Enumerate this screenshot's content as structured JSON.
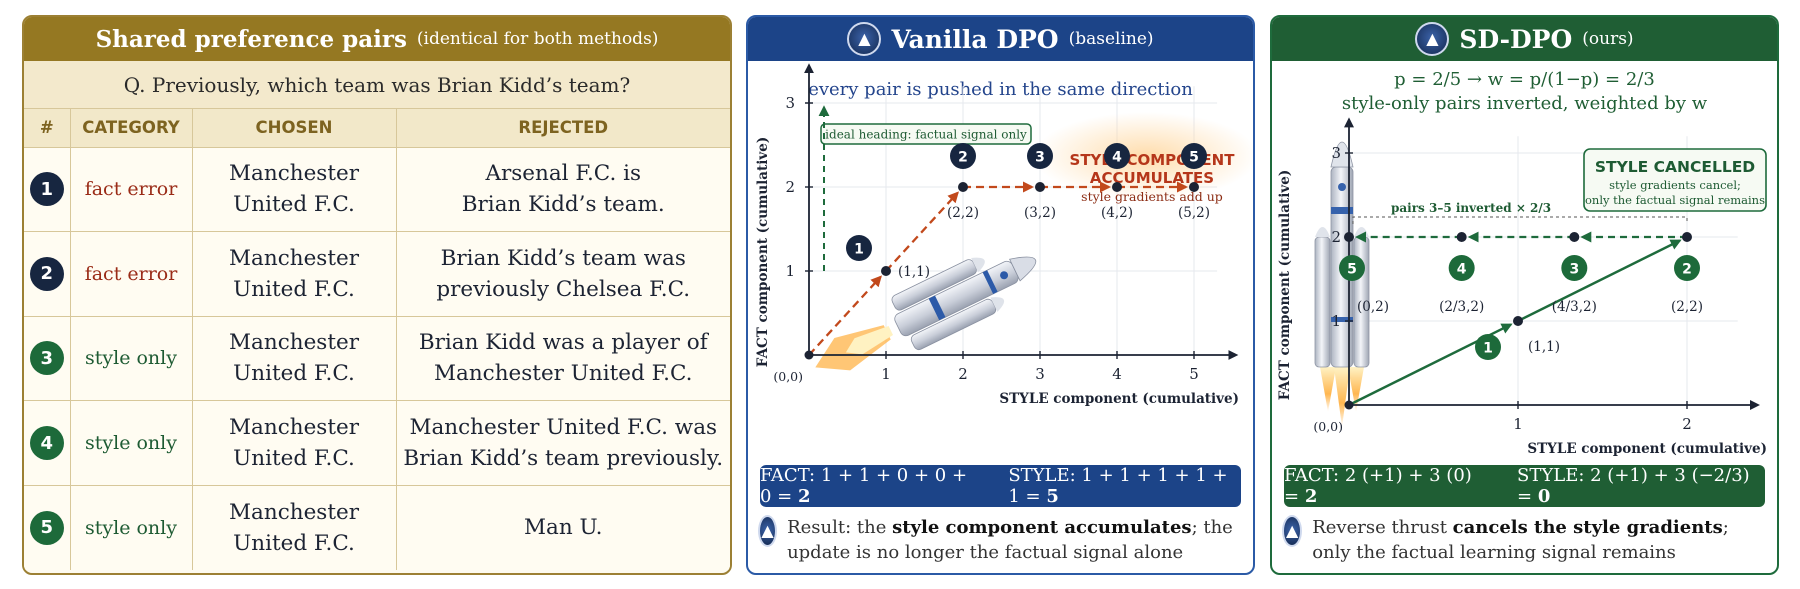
{
  "left_panel": {
    "title": "Shared preference pairs",
    "subtitle": "(identical for both methods)",
    "question": "Q. Previously, which team was Brian Kidd’s team?",
    "columns": [
      "#",
      "CATEGORY",
      "CHOSEN",
      "REJECTED"
    ],
    "rows": [
      {
        "num": "1",
        "category": "fact error",
        "kind": "err",
        "chosen_1": "Manchester",
        "chosen_2": "United F.C.",
        "rejected_1": "Arsenal F.C. is",
        "rejected_2": "Brian Kidd’s team."
      },
      {
        "num": "2",
        "category": "fact error",
        "kind": "err",
        "chosen_1": "Manchester",
        "chosen_2": "United F.C.",
        "rejected_1": "Brian Kidd’s team was",
        "rejected_2": "previously Chelsea F.C."
      },
      {
        "num": "3",
        "category": "style only",
        "kind": "sty",
        "chosen_1": "Manchester",
        "chosen_2": "United F.C.",
        "rejected_1": "Brian Kidd was a player of",
        "rejected_2": "Manchester United F.C."
      },
      {
        "num": "4",
        "category": "style only",
        "kind": "sty",
        "chosen_1": "Manchester",
        "chosen_2": "United F.C.",
        "rejected_1": "Manchester United F.C. was",
        "rejected_2": "Brian Kidd’s team previously."
      },
      {
        "num": "5",
        "category": "style only",
        "kind": "sty",
        "chosen_1": "Manchester",
        "chosen_2": "United F.C.",
        "rejected_1": "Man U.",
        "rejected_2": ""
      }
    ]
  },
  "vanilla": {
    "title": "Vanilla DPO",
    "tag": "(baseline)",
    "subtitle": "every pair is pushed in the same direction",
    "ideal_label": "ideal heading: factual signal only",
    "accum_title_1": "STYLE COMPONENT",
    "accum_title_2": "ACCUMULATES",
    "accum_sub": "style gradients add up",
    "y_axis_label": "FACT component (cumulative)",
    "x_axis_label": "STYLE component (cumulative)",
    "origin_label": "(0,0)",
    "x_ticks": [
      "1",
      "2",
      "3",
      "4",
      "5"
    ],
    "y_ticks": [
      "1",
      "2",
      "3"
    ],
    "points": [
      {
        "n": "1",
        "x": 1,
        "y": 1,
        "label": "(1,1)"
      },
      {
        "n": "2",
        "x": 2,
        "y": 2,
        "label": "(2,2)"
      },
      {
        "n": "3",
        "x": 3,
        "y": 2,
        "label": "(3,2)"
      },
      {
        "n": "4",
        "x": 4,
        "y": 2,
        "label": "(4,2)"
      },
      {
        "n": "5",
        "x": 5,
        "y": 2,
        "label": "(5,2)"
      }
    ],
    "sum_fact_text": "FACT: 1 + 1 + 0 + 0 + 0 = ",
    "sum_fact_total": "2",
    "sum_style_text": "STYLE: 1 + 1 + 1 + 1 + 1 = ",
    "sum_style_total": "5",
    "result_pre": "Result: the ",
    "result_bold": "style component accumulates",
    "result_post": "; the update is no longer the factual signal alone"
  },
  "sddpo": {
    "title": "SD-DPO",
    "tag": "(ours)",
    "formula": "p = 2/5 → w = p/(1−p) = 2/3",
    "subtitle": "style-only pairs inverted, weighted by w",
    "cancel_title": "STYLE CANCELLED",
    "cancel_sub_1": "style gradients cancel;",
    "cancel_sub_2": "only the factual signal remains",
    "inverted_label": "pairs 3–5 inverted × 2/3",
    "y_axis_label": "FACT component (cumulative)",
    "x_axis_label": "STYLE component (cumulative)",
    "origin_label": "(0,0)",
    "x_ticks": [
      "1",
      "2"
    ],
    "y_ticks": [
      "1",
      "2",
      "3"
    ],
    "points": [
      {
        "n": "1",
        "x": 1,
        "y": 1,
        "label": "(1,1)"
      },
      {
        "n": "2",
        "x": 2,
        "y": 2,
        "label": "(2,2)"
      },
      {
        "n": "3",
        "x": 1.3333,
        "y": 2,
        "label": "(4/3,2)"
      },
      {
        "n": "4",
        "x": 0.6667,
        "y": 2,
        "label": "(2/3,2)"
      },
      {
        "n": "5",
        "x": 0,
        "y": 2,
        "label": "(0,2)"
      }
    ],
    "sum_fact_text": "FACT: 2 (+1) + 3 (0) = ",
    "sum_fact_total": "2",
    "sum_style_text": "STYLE: 2 (+1) + 3 (−2/3) = ",
    "sum_style_total": "0",
    "result_pre": "Reverse thrust ",
    "result_bold": "cancels the style gradients",
    "result_post": "; only the factual learning signal remains"
  },
  "colors": {
    "gold": "#957822",
    "navy": "#1c4488",
    "green": "#1f5e34",
    "orange": "#c2491c",
    "dark_node": "#172640"
  }
}
